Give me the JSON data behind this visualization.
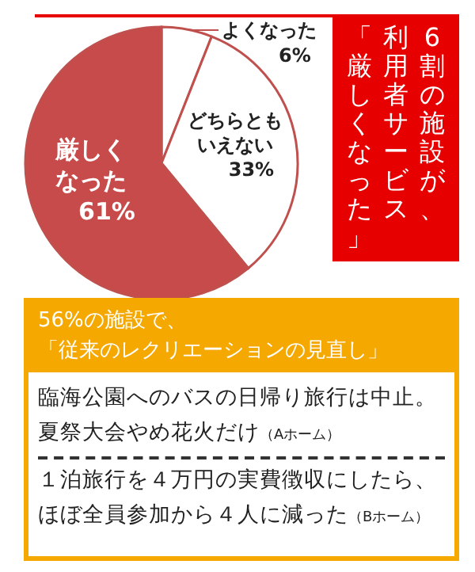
{
  "chart_data": {
    "type": "pie",
    "title": "6割の施設が、利用者サービス「厳しくなった」",
    "categories": [
      "よくなった",
      "どちらともいえない",
      "厳しくなった"
    ],
    "values": [
      6,
      33,
      61
    ],
    "value_labels": [
      "6%",
      "33%",
      "61%"
    ],
    "colors": [
      "#ffffff",
      "#ffffff",
      "#c84b4b"
    ],
    "legend": false,
    "annotations": [
      "56%の施設で、「従来のレクリエーションの見直し」",
      "臨海公園へのバスの日帰り旅行は中止。夏祭大会やめ花火だけ（Aホーム）",
      "１泊旅行を４万円の実費徴収にしたら、ほぼ全員参加から４人に減った（Bホーム）"
    ]
  }
}
